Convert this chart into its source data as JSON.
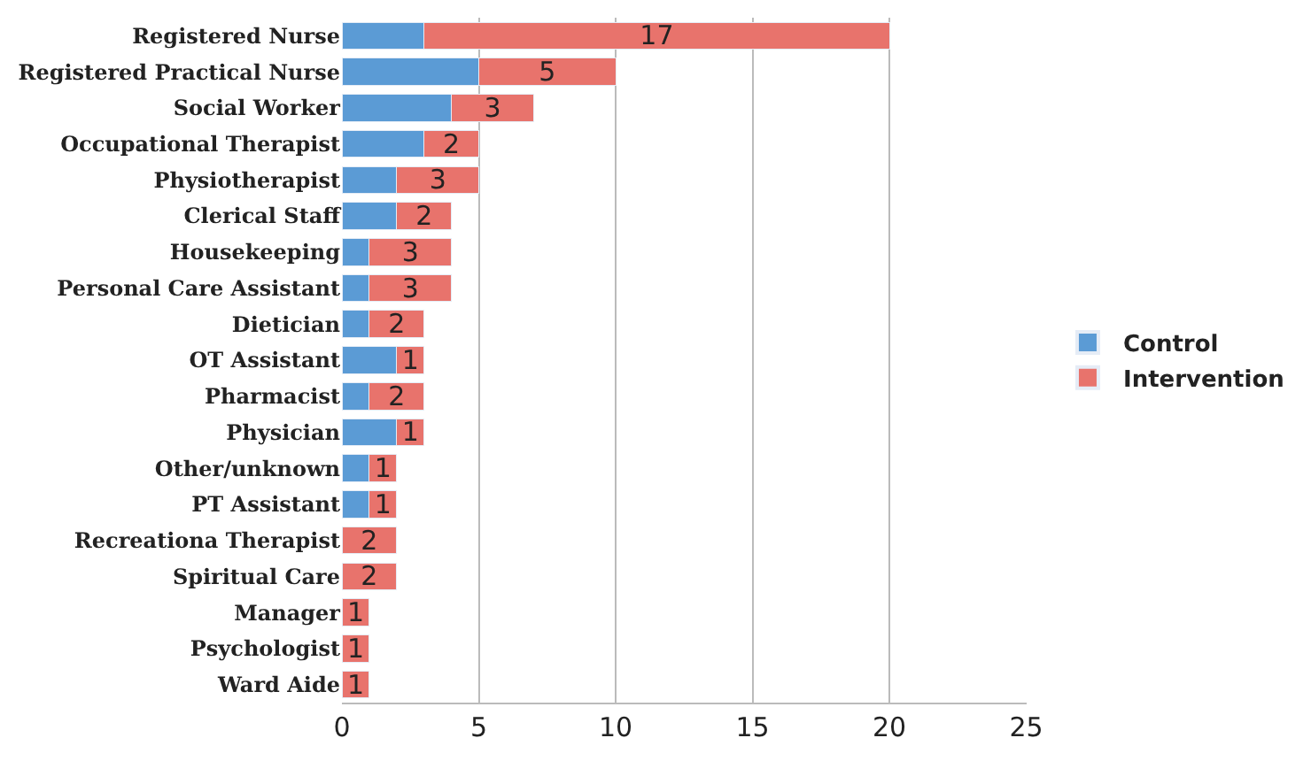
{
  "chart_data": {
    "type": "bar",
    "orientation": "horizontal",
    "stacked": true,
    "categories": [
      "Registered Nurse",
      "Registered Practical Nurse",
      "Social Worker",
      "Occupational Therapist",
      "Physiotherapist",
      "Clerical Staff",
      "Housekeeping",
      "Personal Care Assistant",
      "Dietician",
      "OT Assistant",
      "Pharmacist",
      "Physician",
      "Other/unknown",
      "PT Assistant",
      "Recreationa Therapist",
      "Spiritual Care",
      "Manager",
      "Psychologist",
      "Ward Aide"
    ],
    "series": [
      {
        "name": "Control",
        "color": "#5b9bd5",
        "values": [
          3,
          5,
          4,
          3,
          2,
          2,
          1,
          1,
          1,
          2,
          1,
          2,
          1,
          1,
          null,
          null,
          null,
          null,
          null
        ]
      },
      {
        "name": "Intervention",
        "color": "#e8736c",
        "values": [
          17,
          5,
          3,
          2,
          3,
          2,
          3,
          3,
          2,
          1,
          2,
          1,
          1,
          1,
          2,
          2,
          1,
          1,
          1
        ],
        "value_labels": [
          "17",
          "5",
          "3",
          "2",
          "3",
          "2",
          "3",
          "3",
          "2",
          "1",
          "2",
          "1",
          "1",
          "1",
          "2",
          "2",
          "1",
          "1",
          "1"
        ]
      }
    ],
    "xlim": [
      0,
      25
    ],
    "xticks": [
      0,
      5,
      10,
      15,
      20,
      25
    ],
    "grid": "x",
    "legend": "right"
  }
}
